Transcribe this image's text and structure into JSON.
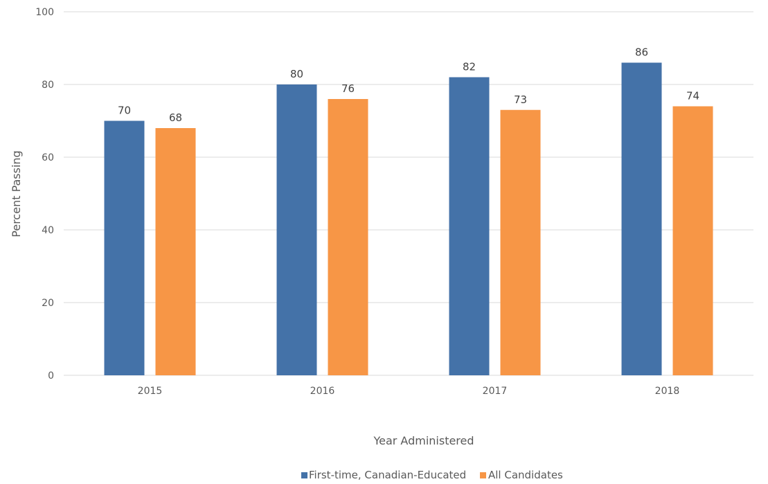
{
  "chart_data": {
    "type": "bar",
    "title": "",
    "xlabel": "Year Administered",
    "ylabel": "Percent Passing",
    "categories": [
      "2015",
      "2016",
      "2017",
      "2018"
    ],
    "series": [
      {
        "name": "First-time, Canadian-Educated",
        "values": [
          70,
          80,
          82,
          86
        ],
        "color": "#4472A8"
      },
      {
        "name": "All Candidates",
        "values": [
          68,
          76,
          73,
          74
        ],
        "color": "#F79646"
      }
    ],
    "ylim": [
      0,
      100
    ],
    "yticks": [
      0,
      20,
      40,
      60,
      80,
      100
    ],
    "grid": true,
    "legend_position": "bottom",
    "data_labels": true,
    "gridline_color": "#D9D9D9"
  }
}
